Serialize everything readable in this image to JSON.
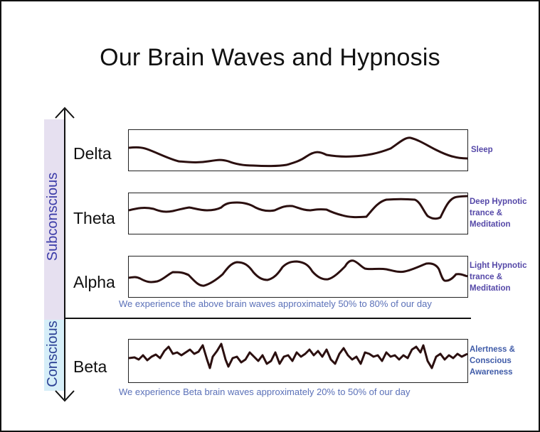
{
  "title": "Our Brain Waves and Hypnosis",
  "axis_labels": {
    "subconscious": "Subconscious",
    "conscious": "Conscious"
  },
  "waves": [
    {
      "name": "Delta",
      "state": "Sleep"
    },
    {
      "name": "Theta",
      "state": "Deep Hypnotic trance & Meditation"
    },
    {
      "name": "Alpha",
      "state": "Light Hypnotic trance & Meditation"
    },
    {
      "name": "Beta",
      "state": "Alertness & Conscious Awareness"
    }
  ],
  "notes": {
    "subconscious": "We experience the above brain waves approximately 50% to 80% of our day",
    "conscious": "We experience Beta brain waves approximately 20% to 50% of our day"
  },
  "colors": {
    "wave_stroke": "#2b0f0f",
    "subconscious_band": "#e6e0f0",
    "conscious_band": "#d6eef8",
    "label_purple": "#5548a8",
    "label_blue": "#3f5ba8"
  }
}
